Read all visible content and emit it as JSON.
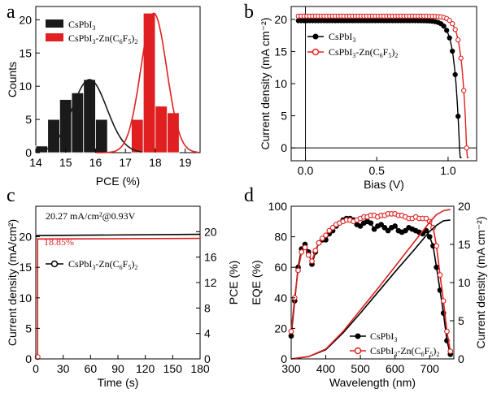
{
  "chart_data": [
    {
      "panel": "a",
      "type": "bar",
      "xlabel": "PCE (%)",
      "ylabel": "Counts",
      "xlim": [
        14,
        19.5
      ],
      "ylim": [
        0,
        22
      ],
      "xticks": [
        "14",
        "15",
        "16",
        "17",
        "18",
        "19"
      ],
      "yticks": [
        "0",
        "5",
        "10",
        "15",
        "20"
      ],
      "legend_position": "top-left",
      "series": [
        {
          "name": "CsPbI3",
          "color": "#1a1a1a",
          "x": [
            14.25,
            14.75,
            15.0,
            15.25,
            15.5,
            15.75,
            16.0,
            16.25,
            16.5,
            16.75
          ],
          "values": [
            1,
            5,
            5,
            8,
            9,
            9,
            11,
            11,
            5,
            5
          ],
          "fit": {
            "center": 15.8,
            "sigma": 0.58,
            "amplitude": 11
          }
        },
        {
          "name": "CsPbI3-Zn(C6F5)2",
          "color": "#e02020",
          "x": [
            17.5,
            17.75,
            18.0,
            18.25,
            18.5,
            18.75
          ],
          "values": [
            5,
            21,
            21,
            7,
            7,
            6
          ],
          "fit": {
            "center": 17.95,
            "sigma": 0.43,
            "amplitude": 21
          }
        }
      ],
      "bars": [
        {
          "series": 0,
          "left": 14.0,
          "right": 14.4,
          "value": 1
        },
        {
          "series": 0,
          "left": 14.4,
          "right": 14.8,
          "value": 5
        },
        {
          "series": 0,
          "left": 14.8,
          "right": 15.2,
          "value": 8
        },
        {
          "series": 0,
          "left": 15.2,
          "right": 15.6,
          "value": 9
        },
        {
          "series": 0,
          "left": 15.6,
          "right": 16.0,
          "value": 11
        },
        {
          "series": 0,
          "left": 16.0,
          "right": 16.4,
          "value": 5
        },
        {
          "series": 1,
          "left": 17.2,
          "right": 17.6,
          "value": 5
        },
        {
          "series": 1,
          "left": 17.6,
          "right": 18.0,
          "value": 21
        },
        {
          "series": 1,
          "left": 18.0,
          "right": 18.4,
          "value": 7
        },
        {
          "series": 1,
          "left": 18.4,
          "right": 18.8,
          "value": 6
        }
      ]
    },
    {
      "panel": "b",
      "type": "line",
      "xlabel": "Bias (V)",
      "ylabel": "Current density (mA cm⁻²)",
      "xlim": [
        -0.1,
        1.2
      ],
      "ylim": [
        -2,
        22
      ],
      "xticks": [
        "0.0",
        "0.5",
        "1.0"
      ],
      "yticks": [
        "0",
        "5",
        "10",
        "15",
        "20"
      ],
      "legend_position": "top-left",
      "series": [
        {
          "name": "CsPbI3",
          "color": "#000000",
          "jsc": 19.8,
          "voc": 1.08
        },
        {
          "name": "CsPbI3-Zn(C6F5)2",
          "color": "#e02020",
          "jsc": 20.5,
          "voc": 1.13
        }
      ]
    },
    {
      "panel": "c",
      "type": "line",
      "xlabel": "Time (s)",
      "ylabel": "Current density (mA/cm²)",
      "ylabel_right": "PCE (%)",
      "xlim": [
        0,
        180
      ],
      "ylim": [
        0,
        25
      ],
      "ylim_right": [
        0,
        24
      ],
      "xticks": [
        "0",
        "30",
        "60",
        "90",
        "120",
        "150",
        "180"
      ],
      "yticks": [
        "0",
        "5",
        "10",
        "15",
        "20"
      ],
      "yticks_right": [
        "0",
        "4",
        "8",
        "12",
        "16",
        "20"
      ],
      "annotations": [
        "20.27 mA/cm²@0.93V",
        "18.85%"
      ],
      "legend_position": "center-left",
      "series": [
        {
          "name": "CsPbI3-Zn(C6F5)2",
          "axis": "left",
          "color": "#000000",
          "x": [
            0,
            2,
            180
          ],
          "values": [
            20.1,
            20.2,
            20.4
          ]
        },
        {
          "name": "PCE",
          "axis": "right",
          "color": "#e02020",
          "x": [
            0,
            2,
            180
          ],
          "values": [
            18.8,
            18.85,
            18.95
          ]
        }
      ]
    },
    {
      "panel": "d",
      "type": "line",
      "xlabel": "Wavelength (nm)",
      "ylabel": "EQE (%)",
      "ylabel_right": "Current density (mA cm⁻²)",
      "xlim": [
        300,
        770
      ],
      "ylim": [
        0,
        100
      ],
      "ylim_right": [
        0,
        20
      ],
      "xticks": [
        "300",
        "400",
        "500",
        "600",
        "700"
      ],
      "yticks": [
        "0",
        "20",
        "40",
        "60",
        "80",
        "100"
      ],
      "yticks_right": [
        "0",
        "5",
        "10",
        "15",
        "20"
      ],
      "legend_position": "bottom-right",
      "series": [
        {
          "name": "CsPbI3",
          "color": "#000000",
          "axis": "left",
          "x": [
            300,
            310,
            320,
            330,
            340,
            350,
            360,
            370,
            380,
            390,
            400,
            410,
            420,
            430,
            440,
            450,
            460,
            470,
            480,
            490,
            500,
            510,
            520,
            530,
            540,
            550,
            560,
            570,
            580,
            590,
            600,
            610,
            620,
            630,
            640,
            650,
            660,
            670,
            680,
            690,
            700,
            710,
            720,
            730,
            740,
            750,
            760
          ],
          "values": [
            15,
            38,
            60,
            72,
            75,
            70,
            62,
            70,
            76,
            78,
            78,
            82,
            84,
            87,
            89,
            91,
            92,
            92,
            91,
            88,
            87,
            89,
            90,
            89,
            85,
            87,
            88,
            86,
            84,
            86,
            87,
            84,
            83,
            84,
            86,
            85,
            84,
            83,
            82,
            84,
            80,
            74,
            60,
            45,
            30,
            12,
            3
          ]
        },
        {
          "name": "CsPbI3-Zn(C6F5)2",
          "color": "#e02020",
          "axis": "left",
          "x": [
            300,
            310,
            320,
            330,
            340,
            350,
            360,
            370,
            380,
            390,
            400,
            410,
            420,
            430,
            440,
            450,
            460,
            470,
            480,
            490,
            500,
            510,
            520,
            530,
            540,
            550,
            560,
            570,
            580,
            590,
            600,
            610,
            620,
            630,
            640,
            650,
            660,
            670,
            680,
            690,
            700,
            710,
            720,
            730,
            740,
            750,
            760
          ],
          "values": [
            18,
            40,
            58,
            70,
            73,
            68,
            64,
            71,
            76,
            79,
            81,
            84,
            86,
            88,
            89,
            90,
            91,
            91,
            90,
            91,
            92,
            93,
            93,
            94,
            94,
            93,
            94,
            94,
            95,
            95,
            95,
            94,
            94,
            93,
            92,
            92,
            93,
            92,
            92,
            92,
            90,
            86,
            74,
            55,
            38,
            18,
            5
          ]
        },
        {
          "name": "CsPbI3 integrated",
          "color": "#000000",
          "axis": "right",
          "x": [
            300,
            350,
            400,
            450,
            500,
            550,
            600,
            650,
            700,
            720,
            740,
            760
          ],
          "values": [
            0,
            0.3,
            1.2,
            3.4,
            6.0,
            8.7,
            11.4,
            14.0,
            16.7,
            17.5,
            18.1,
            18.2
          ]
        },
        {
          "name": "CsPbI3-Zn(C6F5)2 integrated",
          "color": "#e02020",
          "axis": "right",
          "x": [
            300,
            350,
            400,
            450,
            500,
            550,
            600,
            650,
            700,
            720,
            740,
            760
          ],
          "values": [
            0,
            0.3,
            1.3,
            3.6,
            6.4,
            9.2,
            12.1,
            15.0,
            17.9,
            18.9,
            19.4,
            19.6
          ]
        }
      ]
    }
  ]
}
